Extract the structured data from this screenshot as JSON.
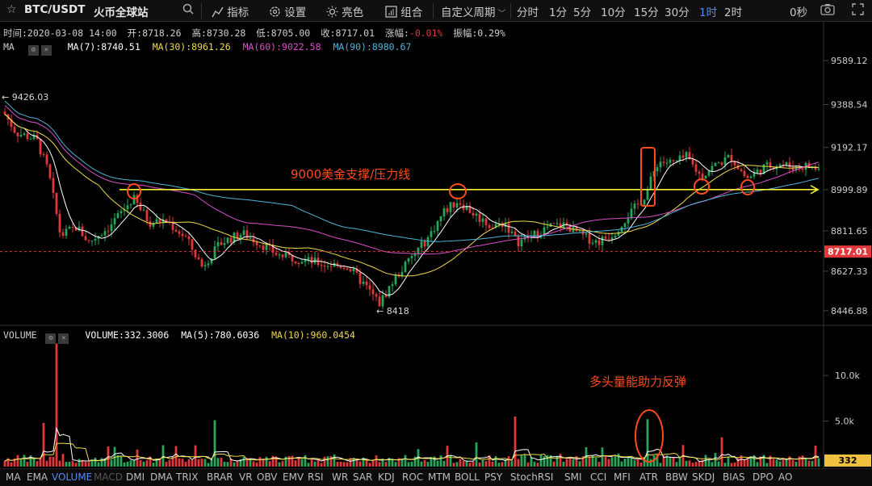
{
  "toolbar": {
    "symbol": "BTC/USDT",
    "exchange": "火币全球站",
    "indicators_label": "指标",
    "settings_label": "设置",
    "brightness_label": "亮色",
    "combo_label": "组合",
    "custom_period_label": "自定义周期",
    "periods": [
      "分时",
      "1分",
      "5分",
      "10分",
      "15分",
      "30分",
      "1时",
      "2时"
    ],
    "active_period": "1时",
    "countdown": "0秒"
  },
  "info": {
    "time": "时间:2020-03-08 14:00",
    "open": "开:8718.26",
    "high": "高:8730.28",
    "low": "低:8705.00",
    "close": "收:8717.01",
    "change_label": "涨幅:",
    "change_value": "-0.01%",
    "amplitude": "振幅:0.29%"
  },
  "ma_bar": {
    "name": "MA",
    "ma7": "MA(7):8740.51",
    "ma30": "MA(30):8961.26",
    "ma60": "MA(60):9022.58",
    "ma90": "MA(90):8980.67"
  },
  "vol_bar": {
    "name": "VOLUME",
    "volume": "VOLUME:332.3006",
    "ma5": "MA(5):780.6036",
    "ma10": "MA(10):960.0454"
  },
  "price_axis": {
    "ticks": [
      "9589.12",
      "9388.54",
      "9192.17",
      "8999.89",
      "8811.65",
      "8627.33",
      "8446.88"
    ],
    "tick_values": [
      9589.12,
      9388.54,
      9192.17,
      8999.89,
      8811.65,
      8627.33,
      8446.88
    ],
    "current_price_label": "8717.01",
    "current_price": 8717.01
  },
  "volume_axis": {
    "ticks": [
      "10.0k",
      "5.0k"
    ],
    "tick_values": [
      10000,
      5000
    ],
    "current_volume_label": "332"
  },
  "annotations": {
    "high_marker": "← 9426.03",
    "low_marker": "← 8418",
    "support_text": "9000美金支撑/压力线",
    "volume_text": "多头量能助力反弹"
  },
  "bottom_tabs": {
    "items": [
      "MA",
      "EMA",
      "VOLUME",
      "MACD",
      "DMI",
      "DMA",
      "TRIX",
      "BRAR",
      "VR",
      "OBV",
      "EMV",
      "RSI",
      "WR",
      "SAR",
      "KDJ",
      "ROC",
      "MTM",
      "BOLL",
      "PSY",
      "StochRSI",
      "SMI",
      "CCI",
      "MFI",
      "ATR",
      "BBW",
      "SKDJ",
      "BIAS",
      "DPO",
      "AO"
    ],
    "selected": "VOLUME",
    "disabled": "MACD"
  },
  "colors": {
    "up": "#26a65b",
    "down": "#e0383b",
    "ma7": "#ffffff",
    "ma30": "#f0d94a",
    "ma60": "#d94fc9",
    "ma90": "#4fb3d9",
    "accent": "#4f8df5",
    "annotation": "#ff4a1c",
    "support_line": "#f2ee35"
  },
  "chart_data": {
    "type": "candlestick",
    "price_range": [
      8380,
      9700
    ],
    "volume_range": [
      0,
      14000
    ],
    "support_level": 9000
  }
}
